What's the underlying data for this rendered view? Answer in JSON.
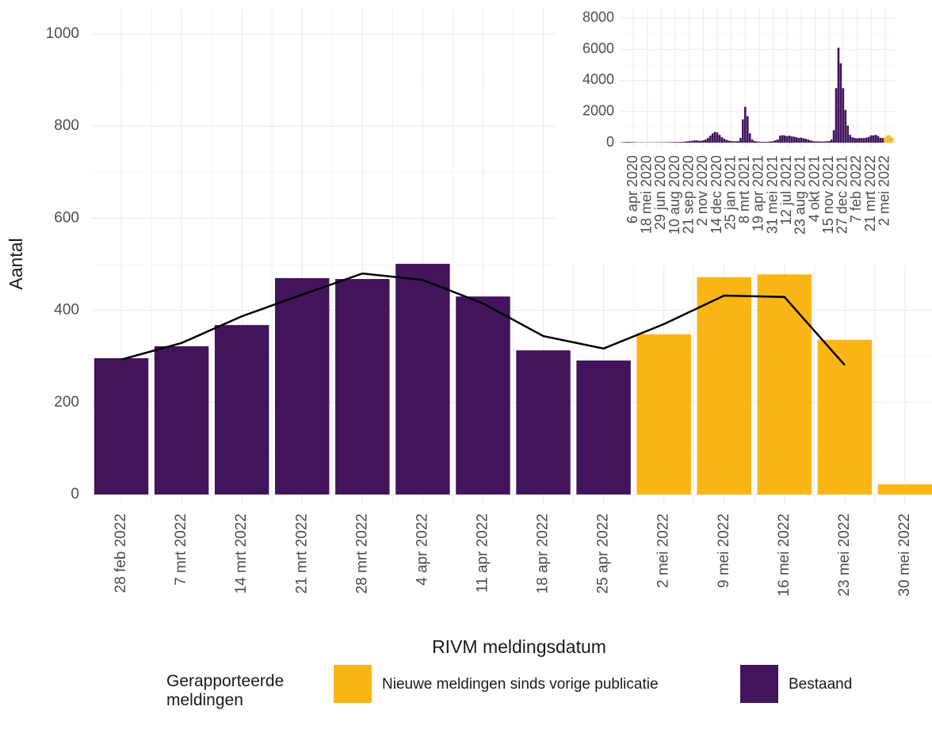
{
  "chart_data": [
    {
      "type": "bar",
      "x_label": "RIVM meldingsdatum",
      "y_label": "Aantal",
      "legend_title": "Gerapporteerde meldingen",
      "categories": [
        "28 feb 2022",
        "7 mrt 2022",
        "14 mrt 2022",
        "21 mrt 2022",
        "28 mrt 2022",
        "4 apr 2022",
        "11 apr 2022",
        "18 apr 2022",
        "25 apr 2022",
        "2 mei 2022",
        "9 mei 2022",
        "16 mei 2022",
        "23 mei 2022",
        "30 mei 2022"
      ],
      "series": [
        {
          "name": "Nieuwe meldingen sinds vorige publicatie",
          "color": "#fbb516",
          "values": [
            null,
            null,
            null,
            null,
            null,
            null,
            null,
            null,
            null,
            348,
            472,
            478,
            336,
            22
          ]
        },
        {
          "name": "Bestaand",
          "color": "#42145b",
          "values": [
            296,
            322,
            368,
            470,
            468,
            501,
            430,
            313,
            291,
            null,
            null,
            null,
            null,
            null
          ]
        }
      ],
      "line": {
        "color": "#000000",
        "values": [
          293,
          329,
          387,
          434,
          480,
          466,
          415,
          344,
          317,
          370,
          432,
          429,
          281,
          null
        ]
      },
      "ylim": [
        -20,
        1055
      ],
      "yticks": [
        0,
        200,
        400,
        600,
        800,
        1000
      ],
      "grid": true
    },
    {
      "type": "bar",
      "categories": [
        null,
        null,
        null,
        null,
        null,
        "6 apr 2020",
        null,
        null,
        null,
        null,
        null,
        "18 mei 2020",
        null,
        null,
        null,
        null,
        null,
        "29 jun 2020",
        null,
        null,
        null,
        null,
        null,
        "10 aug 2020",
        null,
        null,
        null,
        null,
        null,
        "21 sep 2020",
        null,
        null,
        null,
        null,
        null,
        "2 nov 2020",
        null,
        null,
        null,
        null,
        null,
        "14 dec 2020",
        null,
        null,
        null,
        null,
        null,
        "25 jan 2021",
        null,
        null,
        null,
        null,
        null,
        "8 mrt 2021",
        null,
        null,
        null,
        null,
        null,
        "19 apr 2021",
        null,
        null,
        null,
        null,
        null,
        "31 mei 2021",
        null,
        null,
        null,
        null,
        null,
        "12 jul 2021",
        null,
        null,
        null,
        null,
        null,
        "23 aug 2021",
        null,
        null,
        null,
        null,
        null,
        "4 okt 2021",
        null,
        null,
        null,
        null,
        null,
        "15 nov 2021",
        null,
        null,
        null,
        null,
        null,
        "27 dec 2021",
        null,
        null,
        null,
        null,
        null,
        "7 feb 2022",
        null,
        null,
        null,
        null,
        null,
        "21 mrt 2022",
        null,
        null,
        null,
        null,
        null,
        "2 mei 2022",
        null,
        null,
        null,
        null
      ],
      "series": [
        {
          "color": "#42145b",
          "values": [
            20,
            30,
            40,
            40,
            35,
            30,
            25,
            20,
            20,
            20,
            15,
            15,
            15,
            15,
            15,
            20,
            20,
            20,
            25,
            25,
            30,
            30,
            35,
            40,
            40,
            45,
            50,
            60,
            80,
            100,
            120,
            140,
            150,
            130,
            120,
            150,
            200,
            300,
            450,
            600,
            700,
            650,
            500,
            350,
            250,
            180,
            130,
            100,
            90,
            80,
            100,
            300,
            1500,
            2300,
            1700,
            600,
            200,
            100,
            80,
            60,
            50,
            50,
            50,
            60,
            80,
            100,
            150,
            200,
            450,
            480,
            460,
            420,
            450,
            400,
            380,
            350,
            300,
            320,
            280,
            250,
            200,
            150,
            100,
            80,
            80,
            80,
            70,
            80,
            90,
            100,
            200,
            800,
            3500,
            6100,
            5100,
            3500,
            2100,
            1100,
            500,
            350,
            300,
            280,
            300,
            290,
            296,
            322,
            368,
            470,
            468,
            501,
            430,
            313,
            291,
            null,
            null,
            null,
            null,
            null
          ]
        },
        {
          "color": "#fbb516",
          "values": [
            null,
            null,
            null,
            null,
            null,
            null,
            null,
            null,
            null,
            null,
            null,
            null,
            null,
            null,
            null,
            null,
            null,
            null,
            null,
            null,
            null,
            null,
            null,
            null,
            null,
            null,
            null,
            null,
            null,
            null,
            null,
            null,
            null,
            null,
            null,
            null,
            null,
            null,
            null,
            null,
            null,
            null,
            null,
            null,
            null,
            null,
            null,
            null,
            null,
            null,
            null,
            null,
            null,
            null,
            null,
            null,
            null,
            null,
            null,
            null,
            null,
            null,
            null,
            null,
            null,
            null,
            null,
            null,
            null,
            null,
            null,
            null,
            null,
            null,
            null,
            null,
            null,
            null,
            null,
            null,
            null,
            null,
            null,
            null,
            null,
            null,
            null,
            null,
            null,
            null,
            null,
            null,
            null,
            null,
            null,
            null,
            null,
            null,
            null,
            null,
            null,
            null,
            null,
            null,
            null,
            null,
            null,
            null,
            null,
            null,
            null,
            null,
            null,
            348,
            472,
            478,
            336,
            22
          ]
        }
      ],
      "ylim": [
        -300,
        8600
      ],
      "yticks": [
        0,
        2000,
        4000,
        6000,
        8000
      ],
      "grid": true
    }
  ]
}
